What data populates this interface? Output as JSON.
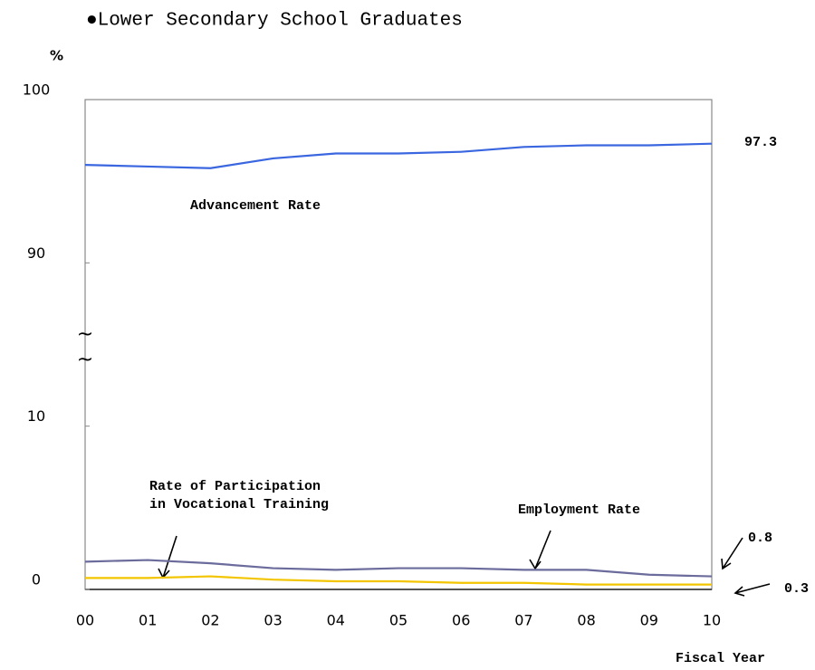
{
  "chart_data": {
    "type": "line",
    "title": "●Lower Secondary School Graduates",
    "y_unit": "%",
    "x_label": "Fiscal Year",
    "categories": [
      "00",
      "01",
      "02",
      "03",
      "04",
      "05",
      "06",
      "07",
      "08",
      "09",
      "10"
    ],
    "ylim": [
      0,
      100
    ],
    "yticks": [
      0,
      10,
      90,
      100
    ],
    "axis_break": [
      10,
      90
    ],
    "series": [
      {
        "name": "Advancement Rate",
        "color": "#3a66e0",
        "values": [
          96.0,
          95.9,
          95.8,
          96.4,
          96.7,
          96.7,
          96.8,
          97.1,
          97.2,
          97.2,
          97.3
        ]
      },
      {
        "name": "Employment Rate",
        "color": "#6b6b9c",
        "values": [
          1.7,
          1.8,
          1.6,
          1.3,
          1.2,
          1.3,
          1.3,
          1.2,
          1.2,
          0.9,
          0.8
        ]
      },
      {
        "name": "Rate of Participation in Vocational Training",
        "color": "#f2c500",
        "values": [
          0.7,
          0.7,
          0.8,
          0.6,
          0.5,
          0.5,
          0.4,
          0.4,
          0.3,
          0.3,
          0.3
        ]
      }
    ]
  }
}
